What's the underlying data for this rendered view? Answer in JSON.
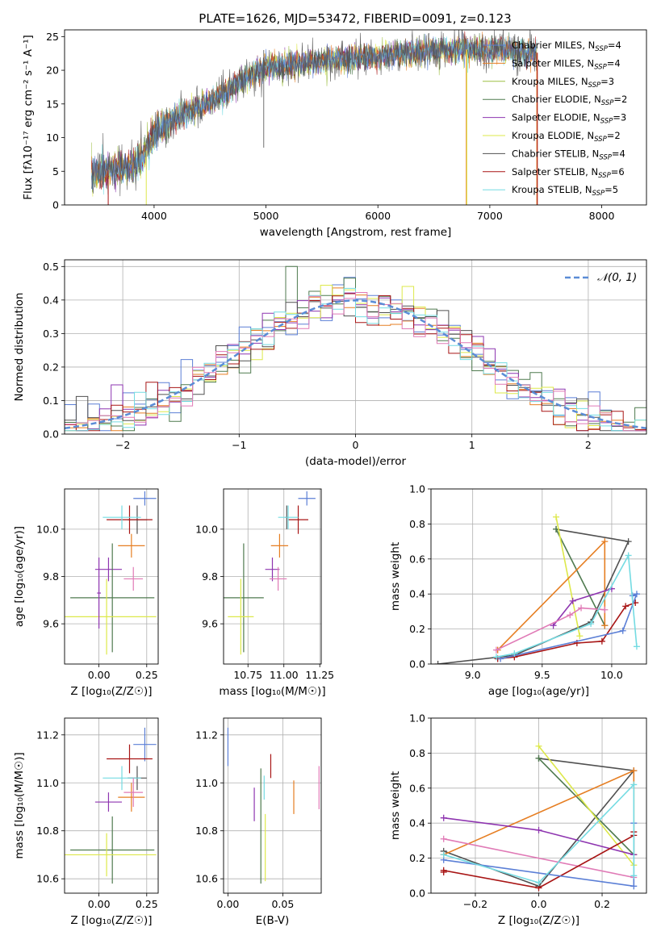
{
  "title": "PLATE=1626, MJD=53472, FIBERID=0091, z=0.123",
  "colors": {
    "Chabrier MILES": "#5b7fd6",
    "Salpeter MILES": "#e67e22",
    "Kroupa MILES": "#9dbf42",
    "Chabrier ELODIE": "#4f7a4f",
    "Salpeter ELODIE": "#8e35b0",
    "Kroupa ELODIE": "#dde84a",
    "Chabrier STELIB": "#505050",
    "Salpeter STELIB": "#a81515",
    "Kroupa STELIB": "#74dbe2",
    "pink": "#e07ab6",
    "gaussian": "#5b8cd6"
  },
  "chart_data": [
    {
      "id": "spectrum",
      "type": "line",
      "title": "PLATE=1626, MJD=53472, FIBERID=0091, z=0.123",
      "xlabel": "wavelength [Angstrom, rest frame]",
      "ylabel": "Flux [fλ10⁻¹⁷ erg cm⁻² s⁻¹ A⁻¹]",
      "xlim": [
        3200,
        8400
      ],
      "ylim": [
        0,
        26
      ],
      "xticks": [
        "4000",
        "5000",
        "6000",
        "7000",
        "8000"
      ],
      "yticks": [
        "0",
        "5",
        "10",
        "15",
        "20",
        "25"
      ],
      "grid": false,
      "legend_loc": "upper-right",
      "continuum": {
        "wavelength": [
          3400,
          3600,
          3800,
          3900,
          4000,
          4200,
          4500,
          4800,
          5000,
          5300,
          5600,
          6000,
          6400,
          6800,
          7100,
          7400
        ],
        "flux": [
          4.6,
          5.2,
          5.6,
          7.0,
          10.6,
          13.0,
          15.3,
          18.5,
          20.5,
          21.0,
          21.6,
          22.0,
          22.8,
          23.1,
          23.0,
          22.6
        ]
      },
      "legend": [
        {
          "label": "Chabrier MILES, N",
          "sub": "SSP",
          "n": "=4"
        },
        {
          "label": "Salpeter MILES, N",
          "sub": "SSP",
          "n": "=4"
        },
        {
          "label": "Kroupa MILES, N",
          "sub": "SSP",
          "n": "=3"
        },
        {
          "label": "Chabrier ELODIE, N",
          "sub": "SSP",
          "n": "=2"
        },
        {
          "label": "Salpeter ELODIE, N",
          "sub": "SSP",
          "n": "=3"
        },
        {
          "label": "Kroupa ELODIE, N",
          "sub": "SSP",
          "n": "=2"
        },
        {
          "label": "Chabrier STELIB, N",
          "sub": "SSP",
          "n": "=4"
        },
        {
          "label": "Salpeter STELIB, N",
          "sub": "SSP",
          "n": "=6"
        },
        {
          "label": "Kroupa STELIB, N",
          "sub": "SSP",
          "n": "=5"
        }
      ]
    },
    {
      "id": "residuals",
      "type": "histogram",
      "xlabel": "(data-model)/error",
      "ylabel": "Normed distribution",
      "xlim": [
        -2.5,
        2.5
      ],
      "ylim": [
        0,
        0.52
      ],
      "xticks": [
        "−2",
        "−1",
        "0",
        "1",
        "2"
      ],
      "yticks": [
        "0.0",
        "0.1",
        "0.2",
        "0.3",
        "0.4",
        "0.5"
      ],
      "grid": true,
      "legend_loc": "upper-right",
      "gaussian_label": "𝒩(0, 1)",
      "bin_width": 0.1
    },
    {
      "id": "z-age",
      "type": "errorbar",
      "xlabel": "Z [log₁₀(Z/Z☉)]",
      "ylabel": "age  [log₁₀(age/yr)]",
      "xlim": [
        -0.18,
        0.31
      ],
      "ylim": [
        9.43,
        10.17
      ],
      "xticks": [
        "0.00",
        "0.25"
      ],
      "yticks": [
        "9.6",
        "9.8",
        "10.0"
      ],
      "grid": true,
      "points": [
        {
          "x": 0.24,
          "xerr": 0.06,
          "y": 10.13,
          "yerr": 0.03,
          "color": "Chabrier MILES"
        },
        {
          "x": 0.2,
          "xerr": 0.05,
          "y": 10.04,
          "yerr": 0.06,
          "color": "Chabrier STELIB"
        },
        {
          "x": 0.16,
          "xerr": 0.12,
          "y": 10.04,
          "yerr": 0.06,
          "color": "Salpeter STELIB"
        },
        {
          "x": 0.12,
          "xerr": 0.1,
          "y": 10.05,
          "yerr": 0.05,
          "color": "Kroupa STELIB"
        },
        {
          "x": 0.17,
          "xerr": 0.07,
          "y": 9.93,
          "yerr": 0.05,
          "color": "Salpeter MILES"
        },
        {
          "x": 0.05,
          "xerr": 0.07,
          "y": 9.83,
          "yerr": 0.05,
          "color": "Salpeter ELODIE"
        },
        {
          "x": 0.18,
          "xerr": 0.05,
          "y": 9.79,
          "yerr": 0.05,
          "color": "pink"
        },
        {
          "x": 0.07,
          "xerr": 0.22,
          "y": 9.71,
          "yerr": 0.23,
          "color": "Chabrier ELODIE"
        },
        {
          "x": 0.04,
          "xerr": 0.26,
          "y": 9.63,
          "yerr": 0.16,
          "color": "Kroupa ELODIE"
        },
        {
          "x": 0.0,
          "xerr": 0.01,
          "y": 9.73,
          "yerr": 0.15,
          "color": "Salpeter ELODIE"
        }
      ]
    },
    {
      "id": "mass-age",
      "type": "errorbar",
      "xlabel": "mass [log₁₀(M/M☉)]",
      "ylabel": "",
      "xlim": [
        10.58,
        11.26
      ],
      "ylim": [
        9.43,
        10.17
      ],
      "xticks": [
        "10.75",
        "11.00",
        "11.25"
      ],
      "yticks": [
        "9.6",
        "9.8",
        "10.0"
      ],
      "grid": true,
      "points": [
        {
          "x": 11.16,
          "xerr": 0.06,
          "y": 10.13,
          "yerr": 0.03,
          "color": "Chabrier MILES"
        },
        {
          "x": 11.1,
          "xerr": 0.07,
          "y": 10.04,
          "yerr": 0.06,
          "color": "Salpeter STELIB"
        },
        {
          "x": 11.02,
          "xerr": 0.01,
          "y": 10.05,
          "yerr": 0.05,
          "color": "Chabrier STELIB"
        },
        {
          "x": 11.03,
          "xerr": 0.07,
          "y": 10.05,
          "yerr": 0.05,
          "color": "Kroupa STELIB"
        },
        {
          "x": 10.97,
          "xerr": 0.06,
          "y": 9.93,
          "yerr": 0.05,
          "color": "Salpeter MILES"
        },
        {
          "x": 10.92,
          "xerr": 0.05,
          "y": 9.83,
          "yerr": 0.05,
          "color": "Salpeter ELODIE"
        },
        {
          "x": 10.96,
          "xerr": 0.06,
          "y": 9.79,
          "yerr": 0.05,
          "color": "pink"
        },
        {
          "x": 10.72,
          "xerr": 0.14,
          "y": 9.71,
          "yerr": 0.23,
          "color": "Chabrier ELODIE"
        },
        {
          "x": 10.7,
          "xerr": 0.09,
          "y": 9.63,
          "yerr": 0.16,
          "color": "Kroupa ELODIE"
        }
      ]
    },
    {
      "id": "age-weight",
      "type": "line",
      "xlabel": "age  [log₁₀(age/yr)]",
      "ylabel": "mass weight",
      "xlim": [
        8.7,
        10.25
      ],
      "ylim": [
        0,
        1
      ],
      "xticks": [
        "9.0",
        "9.5",
        "10.0"
      ],
      "yticks": [
        "0.0",
        "0.2",
        "0.4",
        "0.6",
        "0.8",
        "1.0"
      ],
      "grid": true,
      "series": [
        {
          "color": "Chabrier STELIB",
          "x": [
            8.75,
            9.3,
            9.85,
            10.12,
            9.6
          ],
          "y": [
            0.0,
            0.05,
            0.24,
            0.7,
            0.77
          ]
        },
        {
          "color": "Chabrier ELODIE",
          "x": [
            9.6,
            9.95
          ],
          "y": [
            0.77,
            0.22
          ]
        },
        {
          "color": "Kroupa ELODIE",
          "x": [
            9.6,
            9.77
          ],
          "y": [
            0.84,
            0.16
          ]
        },
        {
          "color": "Salpeter MILES",
          "x": [
            9.18,
            9.95,
            9.95
          ],
          "y": [
            0.08,
            0.7,
            0.22
          ]
        },
        {
          "color": "Salpeter ELODIE",
          "x": [
            9.58,
            9.72,
            10.0
          ],
          "y": [
            0.22,
            0.36,
            0.43
          ]
        },
        {
          "color": "pink",
          "x": [
            9.17,
            9.7,
            9.78,
            9.95
          ],
          "y": [
            0.08,
            0.28,
            0.32,
            0.31
          ]
        },
        {
          "color": "Salpeter STELIB",
          "x": [
            9.18,
            9.3,
            9.75,
            9.93,
            10.1,
            10.17
          ],
          "y": [
            0.03,
            0.04,
            0.12,
            0.13,
            0.33,
            0.35
          ]
        },
        {
          "color": "Chabrier MILES",
          "x": [
            9.2,
            10.08,
            10.18,
            10.15
          ],
          "y": [
            0.03,
            0.19,
            0.4,
            0.39
          ]
        },
        {
          "color": "Kroupa STELIB",
          "x": [
            9.17,
            9.3,
            9.85,
            10.12,
            10.18
          ],
          "y": [
            0.04,
            0.06,
            0.23,
            0.62,
            0.1
          ]
        }
      ]
    },
    {
      "id": "z-mass",
      "type": "errorbar",
      "xlabel": "Z [log₁₀(Z/Z☉)]",
      "ylabel": "mass [log₁₀(M/M☉)]",
      "xlim": [
        -0.18,
        0.31
      ],
      "ylim": [
        10.54,
        11.27
      ],
      "xticks": [
        "0.00",
        "0.25"
      ],
      "yticks": [
        "10.6",
        "10.8",
        "11.0",
        "11.2"
      ],
      "grid": true,
      "points": [
        {
          "x": 0.24,
          "xerr": 0.06,
          "y": 11.16,
          "yerr": 0.07,
          "color": "Chabrier MILES"
        },
        {
          "x": 0.16,
          "xerr": 0.12,
          "y": 11.1,
          "yerr": 0.06,
          "color": "Salpeter STELIB"
        },
        {
          "x": 0.2,
          "xerr": 0.05,
          "y": 11.02,
          "yerr": 0.05,
          "color": "Chabrier STELIB"
        },
        {
          "x": 0.12,
          "xerr": 0.1,
          "y": 11.02,
          "yerr": 0.05,
          "color": "Kroupa STELIB"
        },
        {
          "x": 0.17,
          "xerr": 0.07,
          "y": 10.94,
          "yerr": 0.06,
          "color": "Salpeter MILES"
        },
        {
          "x": 0.05,
          "xerr": 0.07,
          "y": 10.92,
          "yerr": 0.04,
          "color": "Salpeter ELODIE"
        },
        {
          "x": 0.18,
          "xerr": 0.05,
          "y": 10.96,
          "yerr": 0.06,
          "color": "pink"
        },
        {
          "x": 0.07,
          "xerr": 0.22,
          "y": 10.72,
          "yerr": 0.14,
          "color": "Chabrier ELODIE"
        },
        {
          "x": 0.04,
          "xerr": 0.26,
          "y": 10.7,
          "yerr": 0.09,
          "color": "Kroupa ELODIE"
        }
      ]
    },
    {
      "id": "ebv-mass",
      "type": "errorbar",
      "xlabel": "E(B-V)",
      "ylabel": "",
      "xlim": [
        -0.004,
        0.085
      ],
      "ylim": [
        10.54,
        11.27
      ],
      "xticks": [
        "0.00",
        "0.05"
      ],
      "yticks": [
        "10.6",
        "10.8",
        "11.0",
        "11.2"
      ],
      "grid": true,
      "points": [
        {
          "x": 0.0,
          "xerr": 0.0,
          "y": 11.15,
          "yerr": 0.08,
          "color": "Chabrier MILES"
        },
        {
          "x": 0.039,
          "xerr": 0.0,
          "y": 11.07,
          "yerr": 0.05,
          "color": "Salpeter STELIB"
        },
        {
          "x": 0.033,
          "xerr": 0.0,
          "y": 10.98,
          "yerr": 0.05,
          "color": "Kroupa STELIB"
        },
        {
          "x": 0.06,
          "xerr": 0.0,
          "y": 10.94,
          "yerr": 0.07,
          "color": "Salpeter MILES"
        },
        {
          "x": 0.083,
          "xerr": 0.0,
          "y": 10.98,
          "yerr": 0.09,
          "color": "pink"
        },
        {
          "x": 0.024,
          "xerr": 0.0,
          "y": 10.91,
          "yerr": 0.07,
          "color": "Salpeter ELODIE"
        },
        {
          "x": 0.03,
          "xerr": 0.0,
          "y": 10.82,
          "yerr": 0.24,
          "color": "Chabrier ELODIE"
        },
        {
          "x": 0.034,
          "xerr": 0.0,
          "y": 10.73,
          "yerr": 0.14,
          "color": "Kroupa ELODIE"
        }
      ]
    },
    {
      "id": "z-weight",
      "type": "line",
      "xlabel": "Z [log₁₀(Z/Z☉)]",
      "ylabel": "mass weight",
      "xlim": [
        -0.34,
        0.34
      ],
      "ylim": [
        0,
        1
      ],
      "xticks": [
        "−0.2",
        "0.0",
        "0.2"
      ],
      "yticks": [
        "0.0",
        "0.2",
        "0.4",
        "0.6",
        "0.8",
        "1.0"
      ],
      "grid": true,
      "series": [
        {
          "color": "Chabrier STELIB",
          "x": [
            -0.3,
            0.0,
            0.3,
            0.0
          ],
          "y": [
            0.24,
            0.04,
            0.7,
            0.77
          ]
        },
        {
          "color": "Chabrier ELODIE",
          "x": [
            0.0,
            0.3
          ],
          "y": [
            0.77,
            0.22
          ]
        },
        {
          "color": "Kroupa ELODIE",
          "x": [
            0.0,
            0.3
          ],
          "y": [
            0.84,
            0.16
          ]
        },
        {
          "color": "Salpeter MILES",
          "x": [
            -0.3,
            0.3,
            0.3
          ],
          "y": [
            0.22,
            0.7,
            0.22
          ]
        },
        {
          "color": "Salpeter ELODIE",
          "x": [
            -0.3,
            0.0,
            0.3
          ],
          "y": [
            0.43,
            0.36,
            0.22
          ]
        },
        {
          "color": "pink",
          "x": [
            -0.3,
            0.3
          ],
          "y": [
            0.31,
            0.09
          ]
        },
        {
          "color": "Salpeter STELIB",
          "x": [
            -0.3,
            -0.3,
            0.0,
            0.3,
            0.3
          ],
          "y": [
            0.12,
            0.13,
            0.03,
            0.33,
            0.35
          ]
        },
        {
          "color": "Chabrier MILES",
          "x": [
            -0.3,
            0.3,
            0.3
          ],
          "y": [
            0.19,
            0.04,
            0.4
          ]
        },
        {
          "color": "Kroupa STELIB",
          "x": [
            -0.3,
            0.0,
            0.3,
            0.3
          ],
          "y": [
            0.22,
            0.06,
            0.62,
            0.1
          ]
        }
      ]
    }
  ]
}
